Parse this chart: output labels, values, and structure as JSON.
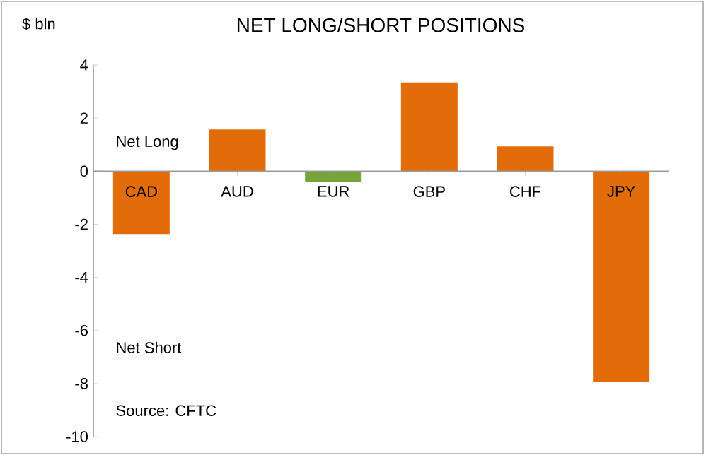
{
  "chart_data": {
    "type": "bar",
    "title": "NET LONG/SHORT POSITIONS",
    "ylabel": "$ bln",
    "categories": [
      "CAD",
      "AUD",
      "EUR",
      "GBP",
      "CHF",
      "JPY"
    ],
    "values": [
      -2.37,
      1.57,
      -0.39,
      3.34,
      0.93,
      -7.95
    ],
    "colors": [
      "#e36c0a",
      "#e36c0a",
      "#77a33c",
      "#e36c0a",
      "#e36c0a",
      "#e36c0a"
    ],
    "ylim": [
      -10,
      4
    ],
    "yticks": [
      -10,
      -8,
      -6,
      -4,
      -2,
      0,
      2,
      4
    ],
    "annotations": [
      "Net Long",
      "Net Short",
      "Source: CFTC"
    ]
  }
}
